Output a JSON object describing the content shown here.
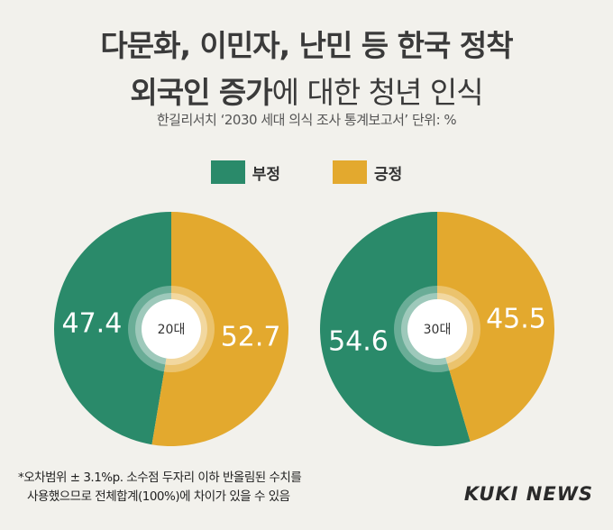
{
  "header": {
    "title_line1": "다문화, 이민자, 난민 등 한국 정착",
    "title_line2_bold": "외국인 증가",
    "title_line2_rest": "에 대한 청년 인식",
    "subtitle": "한길리서치 ‘2030 세대 의식 조사 통계보고서’ 단위: %"
  },
  "colors": {
    "negative": "#2a8a6a",
    "positive": "#e3a92e",
    "background": "#f2f1ec"
  },
  "legend": [
    {
      "name": "부정",
      "color": "#2a8a6a"
    },
    {
      "name": "긍정",
      "color": "#e3a92e"
    }
  ],
  "chart_data": [
    {
      "type": "pie",
      "center_label": "20대",
      "slices": [
        {
          "label": "부정",
          "value": 47.4,
          "color": "#2a8a6a"
        },
        {
          "label": "긍정",
          "value": 52.7,
          "color": "#e3a92e"
        }
      ]
    },
    {
      "type": "pie",
      "center_label": "30대",
      "slices": [
        {
          "label": "부정",
          "value": 54.6,
          "color": "#2a8a6a"
        },
        {
          "label": "긍정",
          "value": 45.5,
          "color": "#e3a92e"
        }
      ]
    }
  ],
  "footnote": {
    "line1": "*오차범위 ± 3.1%p. 소수점 두자리 이하 반올림된 수치를",
    "line2": "사용했으므로 전체합계(100%)에 차이가 있을 수 있음"
  },
  "brand": "KUKI NEWS"
}
